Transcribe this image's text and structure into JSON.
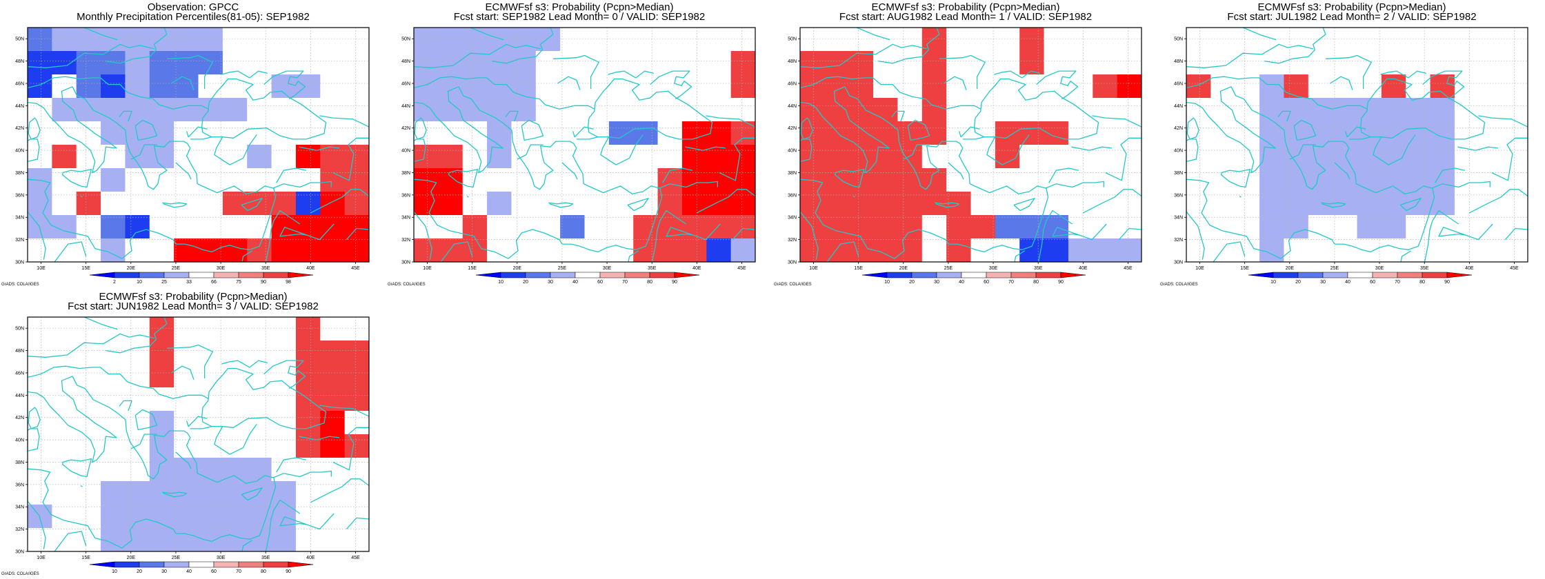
{
  "colors": {
    "coast": "#22c8c8",
    "frame": "#000000",
    "grid": "#b0b0b0",
    "bins": [
      "#0000ff",
      "#1f3df0",
      "#5a78e8",
      "#a8b0f4",
      "#ffffff",
      "#f6b3b3",
      "#ee8080",
      "#ee4040",
      "#ff0000"
    ]
  },
  "credit": "GrADS: COLA/IGES",
  "panels": [
    {
      "title": [
        "Observation: GPCC",
        "Monthly Precipitation Percentiles(81-05): SEP1982"
      ],
      "colorbar_labels": [
        "2",
        "10",
        "25",
        "33",
        "66",
        "75",
        "90",
        "98"
      ]
    },
    {
      "title": [
        "ECMWFsf s3: Probability (Pcpn>Median)",
        "Fcst start: SEP1982   Lead Month= 0 / VALID: SEP1982"
      ],
      "colorbar_labels": [
        "10",
        "20",
        "30",
        "40",
        "60",
        "70",
        "80",
        "90"
      ]
    },
    {
      "title": [
        "ECMWFsf s3: Probability (Pcpn>Median)",
        "Fcst start: AUG1982   Lead Month= 1 / VALID: SEP1982"
      ],
      "colorbar_labels": [
        "10",
        "20",
        "30",
        "40",
        "60",
        "70",
        "80",
        "90"
      ]
    },
    {
      "title": [
        "ECMWFsf s3: Probability (Pcpn>Median)",
        "Fcst start: JUL1982   Lead Month= 2 / VALID: SEP1982"
      ],
      "colorbar_labels": [
        "10",
        "20",
        "30",
        "40",
        "60",
        "70",
        "80",
        "90"
      ]
    },
    {
      "title": [
        "ECMWFsf s3: Probability (Pcpn>Median)",
        "Fcst start: JUN1982   Lead Month= 3 / VALID: SEP1982"
      ],
      "colorbar_labels": [
        "10",
        "20",
        "30",
        "40",
        "60",
        "70",
        "80",
        "90"
      ]
    }
  ],
  "map": {
    "lon_range": [
      8.5,
      46.5
    ],
    "lat_range": [
      30,
      51
    ],
    "lon_ticks": [
      "10E",
      "15E",
      "20E",
      "25E",
      "30E",
      "35E",
      "40E",
      "45E"
    ],
    "lat_ticks": [
      "30N",
      "32N",
      "34N",
      "36N",
      "38N",
      "40N",
      "42N",
      "44N",
      "46N",
      "48N",
      "50N"
    ],
    "grid_cols": 14,
    "grid_rows": 10
  },
  "grids": [
    [
      "23333333444444",
      "11223222444444",
      "14213224443344",
      "43333333344444",
      "44433344444444",
      "47443344434877",
      "34434444444477",
      "34744444777187",
      "33421444448888",
      "44434488878888"
    ],
    [
      "33333344444444",
      "33333444444447",
      "33333444444447",
      "33333444444444",
      "44434444224887",
      "77434444444888",
      "88444444447888",
      "88434444447888",
      "44744424477777",
      "77744444477713"
    ],
    [
      "44444744474444",
      "77744744474444",
      "77744744444478",
      "77774744444444",
      "77777744777444",
      "77777444744444",
      "77777744444444",
      "77777774444444",
      "77777477222444",
      "77777474411333"
    ],
    [
      "44444444444444",
      "44444444444444",
      "74437444747444",
      "44433333333444",
      "44433333333444",
      "44433333333444",
      "44433333333444",
      "44433333333444",
      "44433443344444",
      "44434444444444"
    ],
    [
      "44444744444744",
      "44444744444777",
      "44444744444777",
      "44444444444777",
      "44444344444784",
      "44444344444787",
      "44444333334444",
      "44433333333444",
      "34433333333444",
      "44433333333444"
    ]
  ]
}
